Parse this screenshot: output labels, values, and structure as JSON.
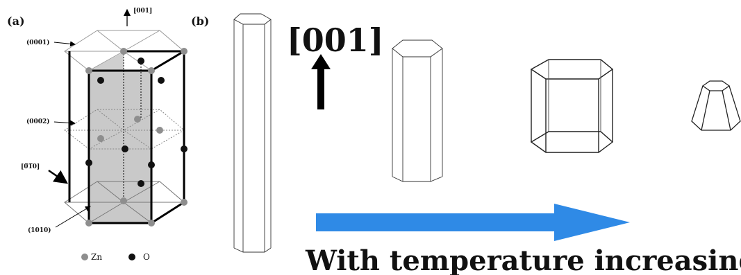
{
  "panel_a": {
    "label": "(a)",
    "direction_label": "[001]",
    "plane_labels": {
      "p0001": "(0001)",
      "p0002": "(0002)",
      "p0_10": "[0̅1̅0]",
      "p1010": "(1010)"
    },
    "legend": {
      "zn": "Zn",
      "o": "O"
    },
    "colors": {
      "zn": "#8e8e8e",
      "o": "#111111",
      "shaded_plane": "#cfcfcf"
    }
  },
  "panel_b": {
    "label": "(b)",
    "direction_label": "[001]",
    "caption": "With temperature increasing",
    "colors": {
      "arrow": "#2f8ae6",
      "dir_arrow": "#000000"
    }
  }
}
